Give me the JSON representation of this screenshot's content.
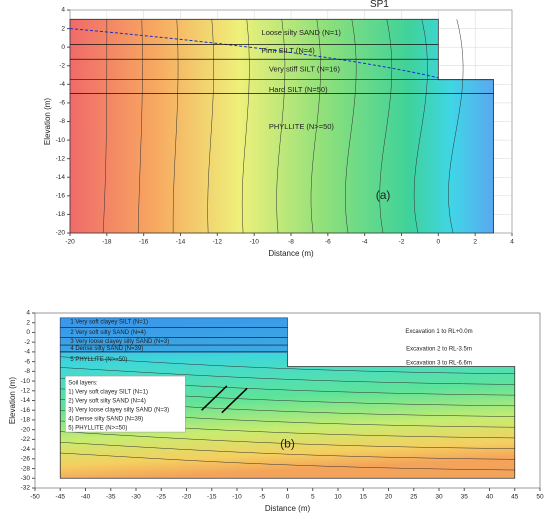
{
  "chart_data": [
    {
      "type": "contour",
      "title": "SP1",
      "panel_label": "(a)",
      "x_label": "Distance (m)",
      "y_label": "Elevation (m)",
      "xlim": [
        -20,
        4
      ],
      "ylim": [
        -20,
        4
      ],
      "xticks": [
        -20,
        -18,
        -16,
        -14,
        -12,
        -10,
        -8,
        -6,
        -4,
        -2,
        0,
        2,
        4
      ],
      "yticks": [
        4,
        2,
        0,
        -2,
        -4,
        -6,
        -8,
        -10,
        -12,
        -14,
        -16,
        -18,
        -20
      ],
      "grid": true,
      "colormap": "horizontal",
      "annotations": [
        "Loose silty SAND (N=1)",
        "Firm SILT (N=4)",
        "Very stiff SILT (N=16)",
        "Hard SILT (N=50)",
        "PHYLLITE (N>=50)"
      ]
    },
    {
      "type": "contour",
      "panel_label": "(b)",
      "x_label": "Distance (m)",
      "y_label": "Elevation (m)",
      "xlim": [
        -50,
        50
      ],
      "ylim": [
        -32,
        4
      ],
      "xticks": [
        -50,
        -45,
        -40,
        -35,
        -30,
        -25,
        -20,
        -15,
        -10,
        -5,
        0,
        5,
        10,
        15,
        20,
        25,
        30,
        35,
        40,
        45,
        50
      ],
      "yticks": [
        4,
        2,
        0,
        -2,
        -4,
        -6,
        -8,
        -10,
        -12,
        -14,
        -16,
        -18,
        -20,
        -22,
        -24,
        -26,
        -28,
        -30,
        -32
      ],
      "grid": false,
      "colormap": "vertical",
      "annotations": [
        "1   Very soft clayey SILT (N=1)",
        "2   Very soft silty SAND (N=4)",
        "3   Very loose clayey silty SAND (N=3)",
        "4   Dense silty SAND (N=39)",
        "5   PHYLLITE (N>=50)",
        "Excavation 1 to RL+0.0m",
        "Excavation 2 to RL-3.5m",
        "Excavation 3 to RL-6.6m"
      ],
      "legend_title": "Soil layers:",
      "legend_items": [
        "1) Very soft clayey SILT (N=1)",
        "2) Very soft silty SAND (N=4)",
        "3) Very loose clayey silty SAND (N=3)",
        "4) Dense silty SAND (N=39)",
        "5) PHYLLITE (N>=50)"
      ]
    }
  ]
}
